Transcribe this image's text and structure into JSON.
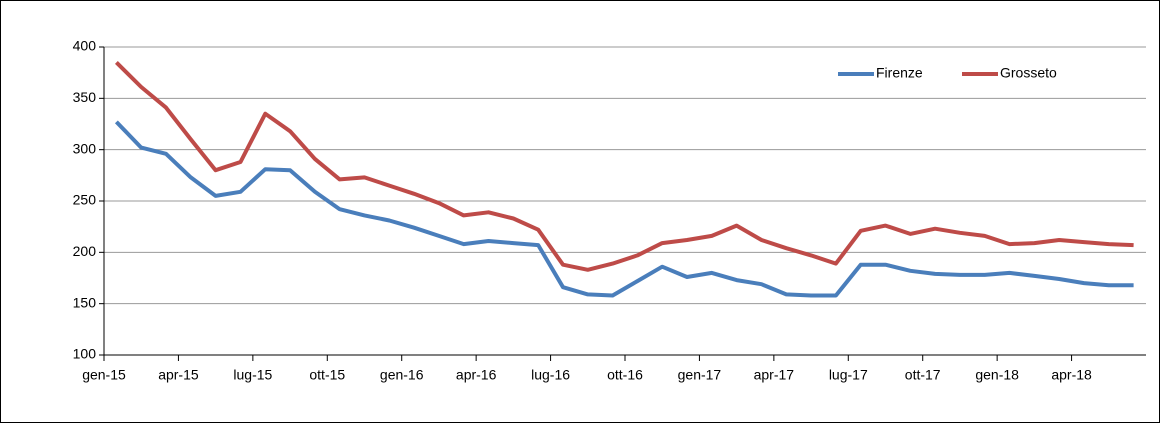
{
  "chart_data": {
    "type": "line",
    "categories": [
      "gen-15",
      null,
      null,
      "apr-15",
      null,
      null,
      "lug-15",
      null,
      null,
      "ott-15",
      null,
      null,
      "gen-16",
      null,
      null,
      "apr-16",
      null,
      null,
      "lug-16",
      null,
      null,
      "ott-16",
      null,
      null,
      "gen-17",
      null,
      null,
      "apr-17",
      null,
      null,
      "lug-17",
      null,
      null,
      "ott-17",
      null,
      null,
      "gen-18",
      null,
      null,
      "apr-18",
      null,
      null
    ],
    "series": [
      {
        "name": "Firenze",
        "color": "#4a7ebb",
        "values": [
          327,
          302,
          296,
          273,
          255,
          259,
          281,
          280,
          259,
          242,
          236,
          231,
          224,
          216,
          208,
          211,
          209,
          207,
          166,
          159,
          158,
          172,
          186,
          176,
          180,
          173,
          169,
          159,
          158,
          158,
          188,
          188,
          182,
          179,
          178,
          178,
          180,
          177,
          174,
          170,
          168,
          168
        ]
      },
      {
        "name": "Grosseto",
        "color": "#be4b48",
        "values": [
          385,
          361,
          341,
          310,
          280,
          288,
          335,
          318,
          291,
          271,
          273,
          265,
          257,
          248,
          236,
          239,
          233,
          222,
          188,
          183,
          189,
          197,
          209,
          212,
          216,
          226,
          212,
          204,
          197,
          189,
          221,
          226,
          218,
          223,
          219,
          216,
          208,
          209,
          212,
          210,
          208,
          207
        ]
      }
    ],
    "ylim": [
      100,
      400
    ],
    "yticks": [
      100,
      150,
      200,
      250,
      300,
      350,
      400
    ],
    "grid": true,
    "legend": "top-right"
  }
}
